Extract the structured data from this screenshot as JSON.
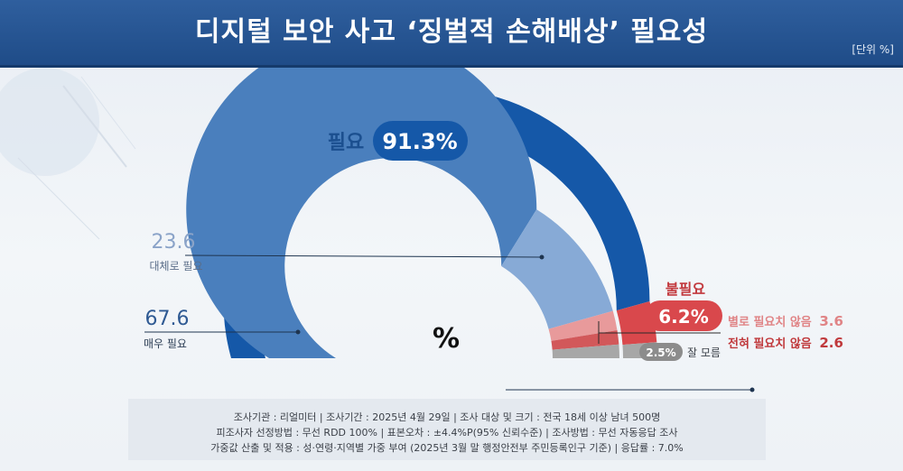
{
  "header": {
    "title": "디지털 보안 사고 ‘징벌적 손해배상’ 필요성",
    "unit": "[단위 %]"
  },
  "center_symbol": "%",
  "groups": {
    "need": {
      "label": "필요",
      "value": "91.3%"
    },
    "no_need": {
      "label": "불필요",
      "value": "6.2%"
    }
  },
  "items": {
    "very": {
      "value": "67.6",
      "label": "매우 필요"
    },
    "somewhat": {
      "value": "23.6",
      "label": "대체로 필요"
    },
    "not_much": {
      "label": "별로 필요치 않음",
      "value": "3.6"
    },
    "not_at_all": {
      "label": "전혀 필요치 않음",
      "value": "2.6"
    },
    "dont_know": {
      "value": "2.5%",
      "label": "잘 모름"
    }
  },
  "colors": {
    "need_outer": "#1558a8",
    "very": "#4a7fbd",
    "somewhat": "#87aad6",
    "no_need_outer": "#d9484c",
    "not_much": "#e89a9b",
    "not_at_all": "#d2585a",
    "dont_know": "#a7a7a7"
  },
  "chart_data": {
    "type": "pie",
    "subtype": "semi-donut",
    "series": [
      {
        "categories": [
          "매우 필요",
          "대체로 필요",
          "별로 필요치 않음",
          "전혀 필요치 않음",
          "잘 모름"
        ],
        "values": [
          67.6,
          23.6,
          3.6,
          2.6,
          2.5
        ]
      },
      {
        "categories": [
          "필요",
          "불필요"
        ],
        "values": [
          91.3,
          6.2
        ]
      }
    ]
  },
  "footer": {
    "line1": "조사기관 : 리얼미터 | 조사기간 : 2025년 4월 29일 | 조사 대상 및 크기 : 전국 18세 이상 남녀 500명",
    "line2": "피조사자 선정방법 : 무선 RDD 100% | 표본오차 : ±4.4%P(95% 신뢰수준) | 조사방법 : 무선 자동응답 조사",
    "line3": "가중값 산출 및 적용 : 성·연령·지역별 가중 부여 (2025년 3월 말 행정안전부 주민등록인구 기준) | 응답률 : 7.0%"
  }
}
